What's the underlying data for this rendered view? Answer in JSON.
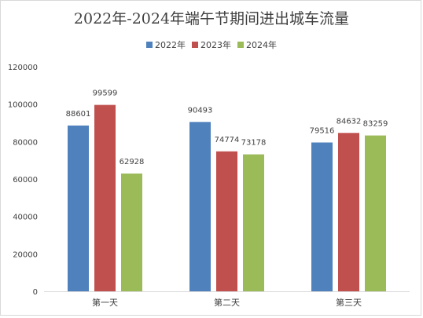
{
  "chart_data": {
    "type": "bar",
    "title": "2022年-2024年端午节期间进出城车流量",
    "categories": [
      "第一天",
      "第二天",
      "第三天"
    ],
    "series": [
      {
        "name": "2022年",
        "color": "#4f81bd",
        "values": [
          88601,
          90493,
          79516
        ]
      },
      {
        "name": "2023年",
        "color": "#c0504d",
        "values": [
          99599,
          74774,
          84632
        ]
      },
      {
        "name": "2024年",
        "color": "#9bbb59",
        "values": [
          62928,
          73178,
          83259
        ]
      }
    ],
    "ylim": [
      0,
      120000
    ],
    "yticks": [
      "0",
      "20000",
      "40000",
      "60000",
      "80000",
      "100000",
      "120000"
    ],
    "grid": false,
    "legend_position": "top",
    "xlabel": "",
    "ylabel": ""
  }
}
